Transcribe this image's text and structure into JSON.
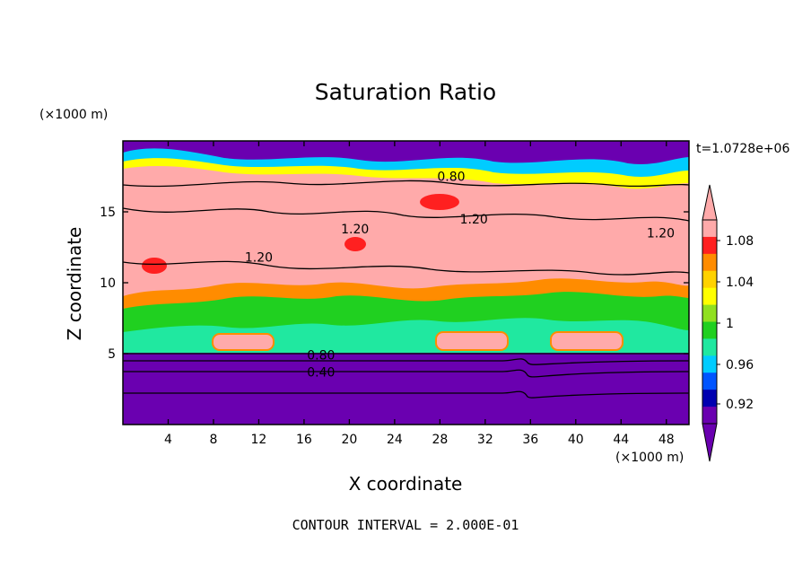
{
  "header": {
    "title": "Saturation Ratio",
    "z_unit": "(×1000 m)",
    "x_unit": "(×1000 m)",
    "time_label": "t=1.0728e+06"
  },
  "footer": {
    "contour_interval": "CONTOUR INTERVAL = 2.000E-01"
  },
  "chart_data": {
    "type": "heatmap",
    "title": "Saturation Ratio",
    "xlabel": "X coordinate",
    "ylabel": "Z coordinate",
    "x_unit": "(×1000 m)",
    "z_unit": "(×1000 m)",
    "xlim": [
      0,
      50
    ],
    "ylim": [
      0,
      20
    ],
    "x_ticks": [
      4,
      8,
      12,
      16,
      20,
      24,
      28,
      32,
      36,
      40,
      44,
      48
    ],
    "y_ticks": [
      5,
      10,
      15
    ],
    "colorbar": {
      "levels": [
        0.92,
        0.96,
        1,
        1.04,
        1.08
      ],
      "labels": [
        "1.08",
        "1.04",
        "1",
        "0.96",
        "0.92"
      ],
      "colors": [
        "#ffaaaa",
        "#ff2020",
        "#ff8c00",
        "#ffd200",
        "#ffff00",
        "#90e020",
        "#20d020",
        "#20e8a0",
        "#00ccff",
        "#0055ff",
        "#0000b0",
        "#6a00b0"
      ],
      "extend": "both"
    },
    "contour_labels": [
      {
        "text": "0.80",
        "x": 29,
        "z": 17.5
      },
      {
        "text": "1.20",
        "x": 20.5,
        "z": 13.8
      },
      {
        "text": "1.20",
        "x": 31,
        "z": 14.5
      },
      {
        "text": "1.20",
        "x": 12,
        "z": 11.8
      },
      {
        "text": "1.20",
        "x": 47.5,
        "z": 13.5
      },
      {
        "text": "0.80",
        "x": 17.5,
        "z": 4.9
      },
      {
        "text": "0.40",
        "x": 17.5,
        "z": 3.7
      }
    ]
  }
}
